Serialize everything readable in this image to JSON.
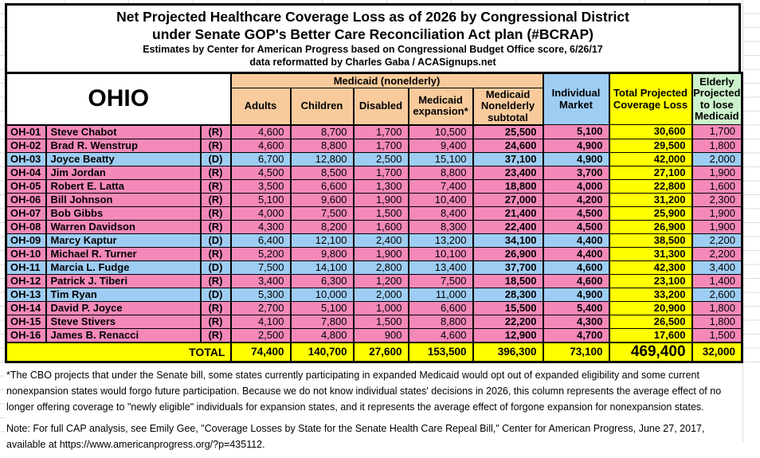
{
  "title": {
    "line1": "Net Projected Healthcare Coverage Loss as of 2026 by Congressional District",
    "line2": "under Senate GOP's Better Care Reconciliation Act plan (#BCRAP)",
    "line3": "Estimates by Center for American Progress based on Congressional Budget Office score, 6/26/17",
    "line4": "data reformatted by Charles Gaba / ACASignups.net"
  },
  "table": {
    "state": "OHIO",
    "group_header": "Medicaid (nonelderly)",
    "columns": {
      "adults": "Adults",
      "children": "Children",
      "disabled": "Disabled",
      "expansion": "Medicaid expansion*",
      "subtotal": "Medicaid Nonelderly subtotal",
      "individual": "Individual Market",
      "total": "Total Projected Coverage Loss",
      "elderly": "Elderly Projected to lose Medicaid"
    },
    "rows": [
      {
        "district": "OH-01",
        "rep": "Steve Chabot",
        "party": "(R)",
        "adults": "4,600",
        "children": "8,700",
        "disabled": "1,700",
        "expansion": "10,500",
        "subtotal": "25,500",
        "individual": "5,100",
        "total": "30,600",
        "elderly": "1,700"
      },
      {
        "district": "OH-02",
        "rep": "Brad R. Wenstrup",
        "party": "(R)",
        "adults": "4,600",
        "children": "8,800",
        "disabled": "1,700",
        "expansion": "9,400",
        "subtotal": "24,600",
        "individual": "4,900",
        "total": "29,500",
        "elderly": "1,800"
      },
      {
        "district": "OH-03",
        "rep": "Joyce Beatty",
        "party": "(D)",
        "adults": "6,700",
        "children": "12,800",
        "disabled": "2,500",
        "expansion": "15,100",
        "subtotal": "37,100",
        "individual": "4,900",
        "total": "42,000",
        "elderly": "2,000"
      },
      {
        "district": "OH-04",
        "rep": "Jim Jordan",
        "party": "(R)",
        "adults": "4,500",
        "children": "8,500",
        "disabled": "1,700",
        "expansion": "8,800",
        "subtotal": "23,400",
        "individual": "3,700",
        "total": "27,100",
        "elderly": "1,900"
      },
      {
        "district": "OH-05",
        "rep": "Robert E. Latta",
        "party": "(R)",
        "adults": "3,500",
        "children": "6,600",
        "disabled": "1,300",
        "expansion": "7,400",
        "subtotal": "18,800",
        "individual": "4,000",
        "total": "22,800",
        "elderly": "1,600"
      },
      {
        "district": "OH-06",
        "rep": "Bill Johnson",
        "party": "(R)",
        "adults": "5,100",
        "children": "9,600",
        "disabled": "1,900",
        "expansion": "10,400",
        "subtotal": "27,000",
        "individual": "4,200",
        "total": "31,200",
        "elderly": "2,300"
      },
      {
        "district": "OH-07",
        "rep": "Bob Gibbs",
        "party": "(R)",
        "adults": "4,000",
        "children": "7,500",
        "disabled": "1,500",
        "expansion": "8,400",
        "subtotal": "21,400",
        "individual": "4,500",
        "total": "25,900",
        "elderly": "1,900"
      },
      {
        "district": "OH-08",
        "rep": "Warren Davidson",
        "party": "(R)",
        "adults": "4,300",
        "children": "8,200",
        "disabled": "1,600",
        "expansion": "8,300",
        "subtotal": "22,400",
        "individual": "4,500",
        "total": "26,900",
        "elderly": "1,900"
      },
      {
        "district": "OH-09",
        "rep": "Marcy Kaptur",
        "party": "(D)",
        "adults": "6,400",
        "children": "12,100",
        "disabled": "2,400",
        "expansion": "13,200",
        "subtotal": "34,100",
        "individual": "4,400",
        "total": "38,500",
        "elderly": "2,200"
      },
      {
        "district": "OH-10",
        "rep": "Michael R. Turner",
        "party": "(R)",
        "adults": "5,200",
        "children": "9,800",
        "disabled": "1,900",
        "expansion": "10,100",
        "subtotal": "26,900",
        "individual": "4,400",
        "total": "31,300",
        "elderly": "2,200"
      },
      {
        "district": "OH-11",
        "rep": "Marcia L. Fudge",
        "party": "(D)",
        "adults": "7,500",
        "children": "14,100",
        "disabled": "2,800",
        "expansion": "13,400",
        "subtotal": "37,700",
        "individual": "4,600",
        "total": "42,300",
        "elderly": "3,400"
      },
      {
        "district": "OH-12",
        "rep": "Patrick J. Tiberi",
        "party": "(R)",
        "adults": "3,400",
        "children": "6,300",
        "disabled": "1,200",
        "expansion": "7,500",
        "subtotal": "18,500",
        "individual": "4,600",
        "total": "23,100",
        "elderly": "1,400"
      },
      {
        "district": "OH-13",
        "rep": "Tim Ryan",
        "party": "(D)",
        "adults": "5,300",
        "children": "10,000",
        "disabled": "2,000",
        "expansion": "11,000",
        "subtotal": "28,300",
        "individual": "4,900",
        "total": "33,200",
        "elderly": "2,600"
      },
      {
        "district": "OH-14",
        "rep": "David P. Joyce",
        "party": "(R)",
        "adults": "2,700",
        "children": "5,100",
        "disabled": "1,000",
        "expansion": "6,600",
        "subtotal": "15,500",
        "individual": "5,400",
        "total": "20,900",
        "elderly": "1,800"
      },
      {
        "district": "OH-15",
        "rep": "Steve Stivers",
        "party": "(R)",
        "adults": "4,100",
        "children": "7,800",
        "disabled": "1,500",
        "expansion": "8,800",
        "subtotal": "22,200",
        "individual": "4,300",
        "total": "26,500",
        "elderly": "1,800"
      },
      {
        "district": "OH-16",
        "rep": "James B. Renacci",
        "party": "(R)",
        "adults": "2,500",
        "children": "4,800",
        "disabled": "900",
        "expansion": "4,600",
        "subtotal": "12,900",
        "individual": "4,700",
        "total": "17,600",
        "elderly": "1,500"
      }
    ],
    "total_row": {
      "label": "TOTAL",
      "adults": "74,400",
      "children": "140,700",
      "disabled": "27,600",
      "expansion": "153,500",
      "subtotal": "396,300",
      "individual": "73,100",
      "total": "469,400",
      "elderly": "32,000"
    }
  },
  "footnotes": {
    "cbo_note": "*The CBO projects that under the Senate bill, some states currently participating in expanded Medicaid would opt out of expanded eligibility and some current nonexpansion states would forgo future participation. Because we do not know individual states' decisions in 2026, this column represents the average effect of no longer offering coverage to \"newly eligible\" individuals for expansion states, and it represents the average effect of forgone expansion for nonexpansion states.",
    "cap_note": "Note: For full CAP analysis, see Emily Gee, \"Coverage Losses by State for the Senate Health Care Repeal Bill,\" Center for American Progress, June 27, 2017, available at https://www.americanprogress.org/?p=435112."
  },
  "colors": {
    "republican_row": "#F489B9",
    "democrat_row": "#9ECDF4",
    "medicaid_header": "#F9CB9C",
    "individual_header": "#9ECDF4",
    "total_column": "#FFFF00",
    "elderly_header": "#CCF2CC"
  },
  "chart_data": {
    "type": "table",
    "title": "Net Projected Healthcare Coverage Loss as of 2026 by Congressional District under Senate GOP's Better Care Reconciliation Act plan (#BCRAP) — OHIO",
    "columns": [
      "District",
      "Representative",
      "Party",
      "Medicaid Adults",
      "Medicaid Children",
      "Medicaid Disabled",
      "Medicaid expansion*",
      "Medicaid Nonelderly subtotal",
      "Individual Market",
      "Total Projected Coverage Loss",
      "Elderly Projected to lose Medicaid"
    ],
    "rows": [
      [
        "OH-01",
        "Steve Chabot",
        "R",
        4600,
        8700,
        1700,
        10500,
        25500,
        5100,
        30600,
        1700
      ],
      [
        "OH-02",
        "Brad R. Wenstrup",
        "R",
        4600,
        8800,
        1700,
        9400,
        24600,
        4900,
        29500,
        1800
      ],
      [
        "OH-03",
        "Joyce Beatty",
        "D",
        6700,
        12800,
        2500,
        15100,
        37100,
        4900,
        42000,
        2000
      ],
      [
        "OH-04",
        "Jim Jordan",
        "R",
        4500,
        8500,
        1700,
        8800,
        23400,
        3700,
        27100,
        1900
      ],
      [
        "OH-05",
        "Robert E. Latta",
        "R",
        3500,
        6600,
        1300,
        7400,
        18800,
        4000,
        22800,
        1600
      ],
      [
        "OH-06",
        "Bill Johnson",
        "R",
        5100,
        9600,
        1900,
        10400,
        27000,
        4200,
        31200,
        2300
      ],
      [
        "OH-07",
        "Bob Gibbs",
        "R",
        4000,
        7500,
        1500,
        8400,
        21400,
        4500,
        25900,
        1900
      ],
      [
        "OH-08",
        "Warren Davidson",
        "R",
        4300,
        8200,
        1600,
        8300,
        22400,
        4500,
        26900,
        1900
      ],
      [
        "OH-09",
        "Marcy Kaptur",
        "D",
        6400,
        12100,
        2400,
        13200,
        34100,
        4400,
        38500,
        2200
      ],
      [
        "OH-10",
        "Michael R. Turner",
        "R",
        5200,
        9800,
        1900,
        10100,
        26900,
        4400,
        31300,
        2200
      ],
      [
        "OH-11",
        "Marcia L. Fudge",
        "D",
        7500,
        14100,
        2800,
        13400,
        37700,
        4600,
        42300,
        3400
      ],
      [
        "OH-12",
        "Patrick J. Tiberi",
        "R",
        3400,
        6300,
        1200,
        7500,
        18500,
        4600,
        23100,
        1400
      ],
      [
        "OH-13",
        "Tim Ryan",
        "D",
        5300,
        10000,
        2000,
        11000,
        28300,
        4900,
        33200,
        2600
      ],
      [
        "OH-14",
        "David P. Joyce",
        "R",
        2700,
        5100,
        1000,
        6600,
        15500,
        5400,
        20900,
        1800
      ],
      [
        "OH-15",
        "Steve Stivers",
        "R",
        4100,
        7800,
        1500,
        8800,
        22200,
        4300,
        26500,
        1800
      ],
      [
        "OH-16",
        "James B. Renacci",
        "R",
        2500,
        4800,
        900,
        4600,
        12900,
        4700,
        17600,
        1500
      ]
    ],
    "total": [
      "TOTAL",
      74400,
      140700,
      27600,
      153500,
      396300,
      73100,
      469400,
      32000
    ]
  }
}
